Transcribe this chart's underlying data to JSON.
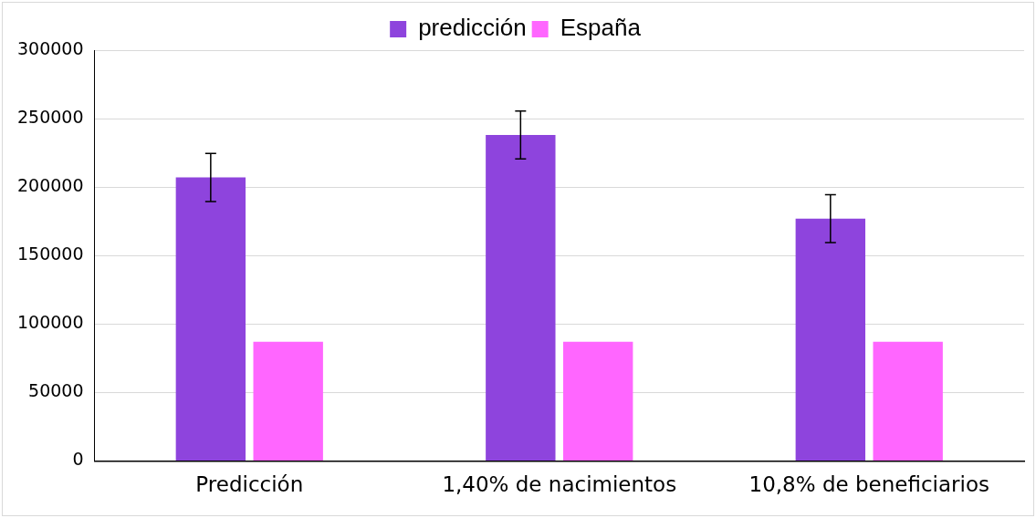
{
  "chart_data": {
    "type": "bar",
    "categories": [
      "Predicción",
      "1,40% de nacimientos",
      "10,8% de beneficiarios"
    ],
    "series": [
      {
        "name": "predicción",
        "color": "#8e44dd",
        "values": [
          207000,
          238000,
          177000
        ],
        "errors": [
          17500,
          17500,
          17500
        ]
      },
      {
        "name": "España",
        "color": "#ff66ff",
        "values": [
          87000,
          87000,
          87000
        ]
      }
    ],
    "ylim": [
      0,
      300000
    ],
    "yticks": [
      0,
      50000,
      100000,
      150000,
      200000,
      250000,
      300000
    ],
    "grid": "y",
    "legend": "top"
  }
}
